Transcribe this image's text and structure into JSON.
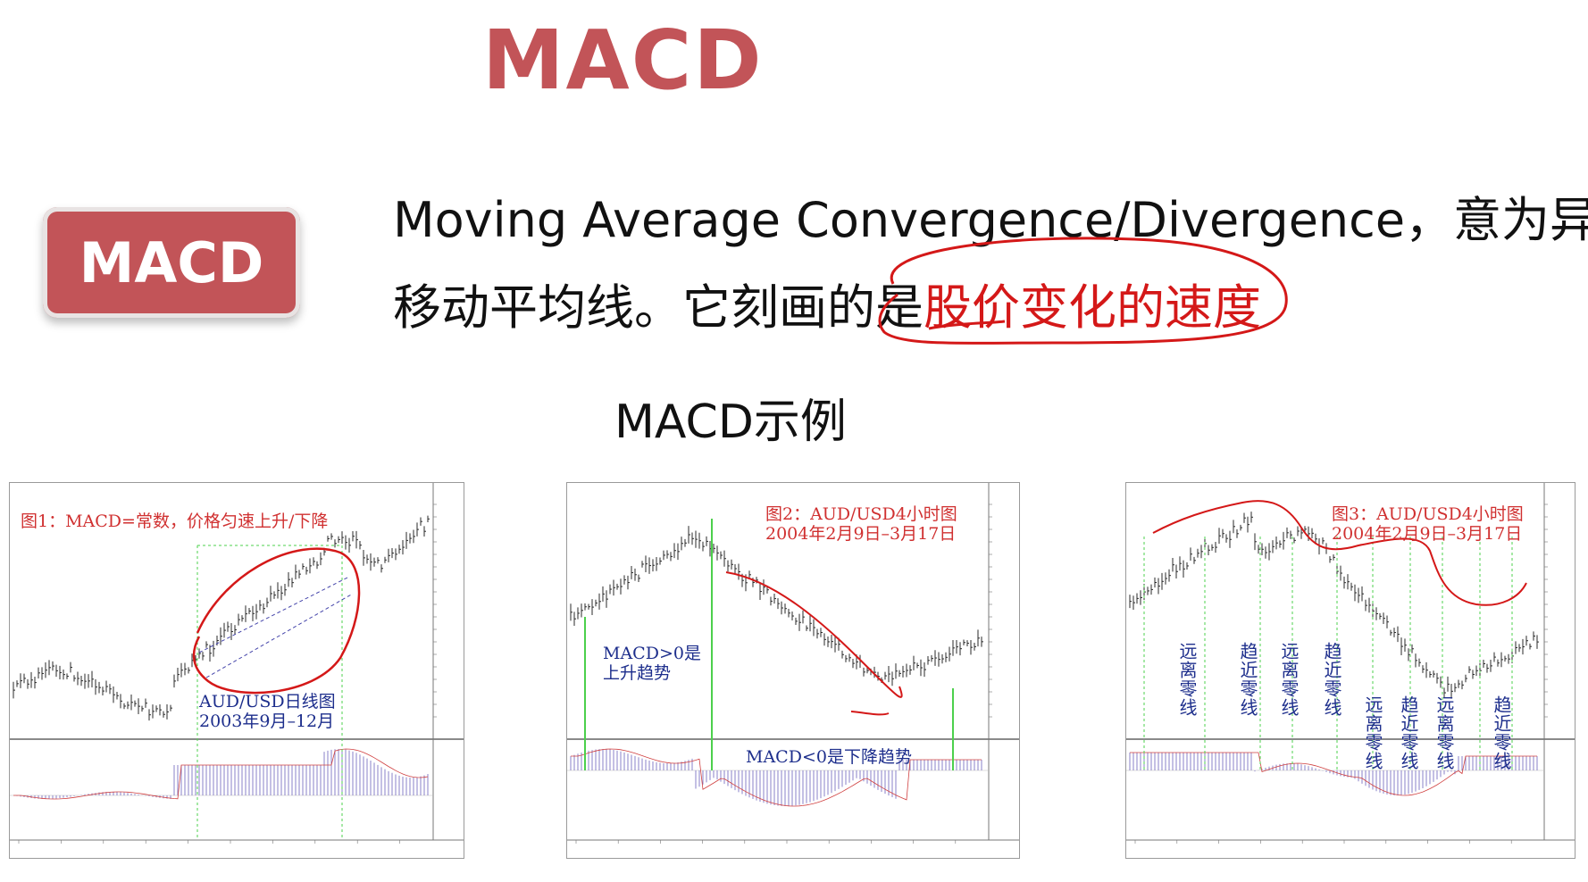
{
  "page": {
    "title": "MACD",
    "badge": "MACD",
    "description_line1": "Moving Average Convergence/Divergence，意为异同",
    "description_line2_plain": "移动平均线。它刻画的是",
    "description_line2_highlight": "股价变化的速度",
    "subtitle": "MACD示例"
  },
  "colors": {
    "accent": "#c25458",
    "highlight_red": "#d41818",
    "annotation_blue": "#1d2e8c",
    "signal_green": "#4cd04c"
  },
  "charts": [
    {
      "caption": "图1：MACD=常数，价格匀速上升/下降",
      "note_line1": "AUD/USD日线图",
      "note_line2": "2003年9月–12月"
    },
    {
      "caption_line1": "图2：AUD/USD4小时图",
      "caption_line2": "2004年2月9日–3月17日",
      "note_positive_line1": "MACD>0是",
      "note_positive_line2": "上升趋势",
      "note_negative": "MACD<0是下降趋势"
    },
    {
      "caption_line1": "图3：AUD/USD4小时图",
      "caption_line2": "2004年2月9日–3月17日",
      "vertical_labels": [
        "远离零线",
        "趋近零线",
        "远离零线",
        "趋近零线",
        "远离零线",
        "趋近零线",
        "远离零线",
        "趋近零线"
      ]
    }
  ]
}
